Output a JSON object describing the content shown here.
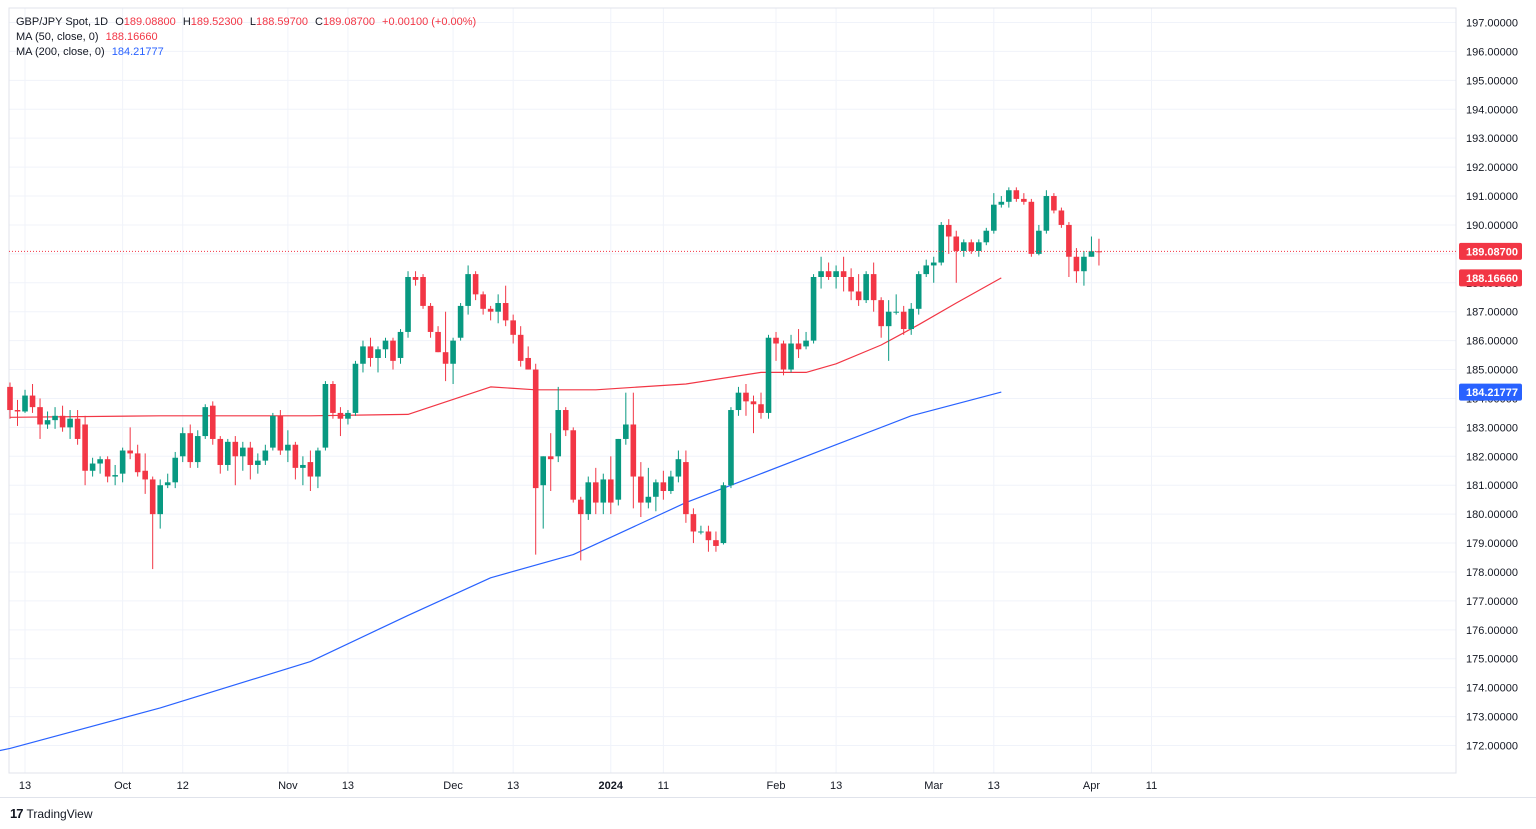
{
  "legend": {
    "symbol": "GBP/JPY Spot, 1D",
    "ohlc": {
      "o_label": "O",
      "o": "189.08800",
      "h_label": "H",
      "h": "189.52300",
      "l_label": "L",
      "l": "188.59700",
      "c_label": "C",
      "c": "189.08700",
      "change": "+0.00100 (+0.00%)"
    },
    "ma50": {
      "label": "MA (50, close, 0)",
      "value": "188.16660"
    },
    "ma200": {
      "label": "MA (200, close, 0)",
      "value": "184.21777"
    }
  },
  "branding": {
    "logo_text": "TradingView",
    "logo_mark": "17"
  },
  "colors": {
    "up": "#089981",
    "down": "#f23645",
    "ma50": "#f23645",
    "ma200": "#2962ff",
    "grid": "#f0f3fa",
    "axis_text": "#131722"
  },
  "chart_data": {
    "type": "candlestick",
    "title": "GBP/JPY Spot, 1D",
    "ylim": [
      171.3,
      197.4
    ],
    "y_ticks": [
      172,
      173,
      174,
      175,
      176,
      177,
      178,
      179,
      180,
      181,
      182,
      183,
      184,
      185,
      186,
      187,
      188,
      189,
      190,
      191,
      192,
      193,
      194,
      195,
      196,
      197
    ],
    "y_tick_labels": [
      "172.00000",
      "173.00000",
      "174.00000",
      "175.00000",
      "176.00000",
      "177.00000",
      "178.00000",
      "179.00000",
      "180.00000",
      "181.00000",
      "182.00000",
      "183.00000",
      "184.00000",
      "185.00000",
      "186.00000",
      "187.00000",
      "188.00000",
      "189.00000",
      "190.00000",
      "191.00000",
      "192.00000",
      "193.00000",
      "194.00000",
      "195.00000",
      "196.00000",
      "197.00000"
    ],
    "x_ticks": [
      {
        "label": "13",
        "date": "2023-09-13",
        "bold": false
      },
      {
        "label": "Oct",
        "date": "2023-10-02",
        "bold": false
      },
      {
        "label": "12",
        "date": "2023-10-12",
        "bold": false
      },
      {
        "label": "Nov",
        "date": "2023-11-01",
        "bold": false
      },
      {
        "label": "13",
        "date": "2023-11-13",
        "bold": false
      },
      {
        "label": "Dec",
        "date": "2023-12-01",
        "bold": false
      },
      {
        "label": "13",
        "date": "2023-12-13",
        "bold": false
      },
      {
        "label": "2024",
        "date": "2024-01-02",
        "bold": true
      },
      {
        "label": "11",
        "date": "2024-01-11",
        "bold": false
      },
      {
        "label": "Feb",
        "date": "2024-02-01",
        "bold": false
      },
      {
        "label": "13",
        "date": "2024-02-13",
        "bold": false
      },
      {
        "label": "Mar",
        "date": "2024-03-01",
        "bold": false
      },
      {
        "label": "13",
        "date": "2024-03-13",
        "bold": false
      },
      {
        "label": "Apr",
        "date": "2024-04-01",
        "bold": false
      },
      {
        "label": "11",
        "date": "2024-04-11",
        "bold": false
      }
    ],
    "last_price": 189.087,
    "last_price_label": "189.08700",
    "ma50_label": "188.16660",
    "ma200_label": "184.21777",
    "ohlc": [
      [
        "2023-09-11",
        184.4,
        184.55,
        183.3,
        183.6
      ],
      [
        "2023-09-12",
        183.6,
        183.95,
        183.05,
        183.55
      ],
      [
        "2023-09-13",
        183.55,
        184.3,
        183.5,
        184.1
      ],
      [
        "2023-09-14",
        184.1,
        184.5,
        183.5,
        183.7
      ],
      [
        "2023-09-15",
        183.7,
        184.0,
        182.6,
        183.1
      ],
      [
        "2023-09-18",
        183.1,
        183.55,
        182.95,
        183.25
      ],
      [
        "2023-09-19",
        183.25,
        183.7,
        182.95,
        183.4
      ],
      [
        "2023-09-20",
        183.4,
        183.75,
        182.85,
        183.0
      ],
      [
        "2023-09-21",
        183.0,
        183.6,
        182.6,
        183.3
      ],
      [
        "2023-09-22",
        183.3,
        183.6,
        182.4,
        182.6
      ],
      [
        "2023-09-25",
        183.1,
        183.4,
        181.0,
        181.5
      ],
      [
        "2023-09-26",
        181.5,
        181.95,
        181.3,
        181.75
      ],
      [
        "2023-09-27",
        181.75,
        182.0,
        181.4,
        181.9
      ],
      [
        "2023-09-28",
        181.9,
        182.0,
        181.1,
        181.3
      ],
      [
        "2023-09-29",
        181.3,
        181.7,
        181.0,
        181.35
      ],
      [
        "2023-10-02",
        181.4,
        182.3,
        181.1,
        182.2
      ],
      [
        "2023-10-03",
        182.2,
        183.0,
        181.9,
        182.1
      ],
      [
        "2023-10-04",
        182.1,
        182.4,
        181.3,
        181.45
      ],
      [
        "2023-10-05",
        181.5,
        182.1,
        180.7,
        181.2
      ],
      [
        "2023-10-06",
        181.2,
        181.3,
        178.1,
        180.0
      ],
      [
        "2023-10-09",
        180.0,
        181.2,
        179.5,
        181.0
      ],
      [
        "2023-10-10",
        181.0,
        181.4,
        180.9,
        181.1
      ],
      [
        "2023-10-11",
        181.1,
        182.15,
        180.9,
        181.95
      ],
      [
        "2023-10-12",
        182.0,
        183.0,
        181.8,
        182.8
      ],
      [
        "2023-10-13",
        182.8,
        183.1,
        181.6,
        181.8
      ],
      [
        "2023-10-16",
        181.8,
        182.9,
        181.6,
        182.7
      ],
      [
        "2023-10-17",
        182.7,
        183.8,
        182.6,
        183.7
      ],
      [
        "2023-10-18",
        183.75,
        183.9,
        182.4,
        182.6
      ],
      [
        "2023-10-19",
        182.6,
        182.7,
        181.4,
        181.7
      ],
      [
        "2023-10-20",
        181.7,
        182.6,
        181.5,
        182.5
      ],
      [
        "2023-10-23",
        182.5,
        182.7,
        181.0,
        182.0
      ],
      [
        "2023-10-24",
        182.0,
        182.5,
        181.5,
        182.3
      ],
      [
        "2023-10-25",
        182.3,
        182.5,
        181.2,
        181.7
      ],
      [
        "2023-10-26",
        181.7,
        182.1,
        181.4,
        181.85
      ],
      [
        "2023-10-27",
        181.85,
        182.4,
        181.7,
        182.2
      ],
      [
        "2023-10-30",
        182.3,
        183.5,
        182.2,
        183.4
      ],
      [
        "2023-10-31",
        183.4,
        183.6,
        182.05,
        182.2
      ],
      [
        "2023-11-01",
        182.2,
        182.9,
        181.8,
        182.4
      ],
      [
        "2023-11-02",
        182.4,
        182.5,
        181.2,
        181.6
      ],
      [
        "2023-11-03",
        181.6,
        182.0,
        181.0,
        181.7
      ],
      [
        "2023-11-06",
        181.8,
        182.2,
        180.8,
        181.3
      ],
      [
        "2023-11-07",
        181.3,
        182.3,
        180.9,
        182.2
      ],
      [
        "2023-11-08",
        182.3,
        184.6,
        182.2,
        184.5
      ],
      [
        "2023-11-09",
        184.5,
        184.6,
        183.3,
        183.5
      ],
      [
        "2023-11-10",
        183.5,
        183.7,
        182.7,
        183.3
      ],
      [
        "2023-11-13",
        183.3,
        183.6,
        183.1,
        183.5
      ],
      [
        "2023-11-14",
        183.5,
        185.3,
        183.4,
        185.2
      ],
      [
        "2023-11-15",
        185.2,
        186.0,
        184.9,
        185.8
      ],
      [
        "2023-11-16",
        185.8,
        186.1,
        185.1,
        185.4
      ],
      [
        "2023-11-17",
        185.4,
        185.8,
        184.9,
        185.7
      ],
      [
        "2023-11-20",
        185.7,
        186.1,
        185.4,
        186.0
      ],
      [
        "2023-11-21",
        186.0,
        186.1,
        185.0,
        185.3
      ],
      [
        "2023-11-22",
        185.4,
        186.4,
        185.2,
        186.3
      ],
      [
        "2023-11-23",
        186.3,
        188.4,
        186.1,
        188.2
      ],
      [
        "2023-11-24",
        188.2,
        188.4,
        187.9,
        188.1
      ],
      [
        "2023-11-27",
        188.2,
        188.3,
        187.1,
        187.2
      ],
      [
        "2023-11-28",
        187.2,
        187.3,
        186.1,
        186.3
      ],
      [
        "2023-11-29",
        186.3,
        186.5,
        185.6,
        185.6
      ],
      [
        "2023-11-30",
        185.6,
        187.0,
        184.6,
        185.2
      ],
      [
        "2023-12-01",
        185.2,
        186.1,
        184.5,
        186.0
      ],
      [
        "2023-12-04",
        186.1,
        187.3,
        186.0,
        187.2
      ],
      [
        "2023-12-05",
        187.2,
        188.6,
        186.9,
        188.3
      ],
      [
        "2023-12-06",
        188.3,
        188.4,
        187.4,
        187.6
      ],
      [
        "2023-12-07",
        187.6,
        187.7,
        186.9,
        187.1
      ],
      [
        "2023-12-08",
        187.1,
        187.2,
        186.7,
        187.0
      ],
      [
        "2023-12-11",
        187.0,
        187.6,
        186.6,
        187.3
      ],
      [
        "2023-12-12",
        187.3,
        187.9,
        186.5,
        186.7
      ],
      [
        "2023-12-13",
        186.7,
        186.9,
        185.9,
        186.2
      ],
      [
        "2023-12-14",
        186.2,
        186.5,
        185.1,
        185.3
      ],
      [
        "2023-12-15",
        185.4,
        185.8,
        185.0,
        185.0
      ],
      [
        "2023-12-18",
        185.0,
        185.2,
        178.6,
        180.9
      ],
      [
        "2023-12-19",
        181.0,
        182.0,
        179.5,
        182.0
      ],
      [
        "2023-12-20",
        182.0,
        182.8,
        180.8,
        181.9
      ],
      [
        "2023-12-21",
        182.0,
        184.4,
        181.8,
        183.6
      ],
      [
        "2023-12-22",
        183.6,
        183.7,
        182.7,
        182.9
      ],
      [
        "2023-12-26",
        182.9,
        183.0,
        180.4,
        180.5
      ],
      [
        "2023-12-27",
        180.5,
        180.6,
        178.4,
        180.0
      ],
      [
        "2023-12-28",
        180.0,
        181.3,
        179.8,
        181.1
      ],
      [
        "2023-12-29",
        181.1,
        181.6,
        180.0,
        180.4
      ],
      [
        "2024-01-01",
        180.4,
        181.4,
        180.0,
        181.2
      ],
      [
        "2024-01-02",
        181.2,
        182.0,
        180.0,
        180.4
      ],
      [
        "2024-01-03",
        180.5,
        182.6,
        180.3,
        182.6
      ],
      [
        "2024-01-04",
        182.6,
        184.2,
        182.4,
        183.1
      ],
      [
        "2024-01-05",
        183.1,
        184.2,
        180.2,
        181.3
      ],
      [
        "2024-01-08",
        181.3,
        181.8,
        179.9,
        180.4
      ],
      [
        "2024-01-09",
        180.4,
        181.6,
        180.2,
        180.6
      ],
      [
        "2024-01-10",
        180.6,
        181.2,
        180.1,
        181.1
      ],
      [
        "2024-01-11",
        181.1,
        181.5,
        180.5,
        180.8
      ],
      [
        "2024-01-12",
        180.8,
        181.5,
        180.7,
        181.3
      ],
      [
        "2024-01-15",
        181.3,
        182.2,
        181.1,
        181.9
      ],
      [
        "2024-01-16",
        181.8,
        182.2,
        179.7,
        180.0
      ],
      [
        "2024-01-17",
        180.0,
        180.2,
        179.0,
        179.4
      ],
      [
        "2024-01-18",
        179.4,
        179.6,
        179.3,
        179.4
      ],
      [
        "2024-01-19",
        179.4,
        179.6,
        178.7,
        179.1
      ],
      [
        "2024-01-22",
        179.1,
        179.4,
        178.7,
        178.9
      ],
      [
        "2024-01-23",
        179.0,
        181.1,
        178.95,
        181.0
      ],
      [
        "2024-01-24",
        181.0,
        183.7,
        180.9,
        183.6
      ],
      [
        "2024-01-25",
        183.6,
        184.4,
        183.4,
        184.2
      ],
      [
        "2024-01-26",
        184.2,
        184.5,
        183.4,
        183.9
      ],
      [
        "2024-01-29",
        183.9,
        184.1,
        182.8,
        183.8
      ],
      [
        "2024-01-30",
        183.8,
        184.2,
        183.3,
        183.5
      ],
      [
        "2024-01-31",
        183.5,
        186.2,
        183.3,
        186.1
      ],
      [
        "2024-02-01",
        186.1,
        186.3,
        185.3,
        185.9
      ],
      [
        "2024-02-02",
        185.9,
        186.0,
        184.8,
        185.0
      ],
      [
        "2024-02-05",
        185.0,
        186.2,
        184.9,
        185.9
      ],
      [
        "2024-02-06",
        185.9,
        186.4,
        185.4,
        185.7
      ],
      [
        "2024-02-07",
        185.8,
        186.3,
        185.7,
        186.0
      ],
      [
        "2024-02-08",
        186.0,
        188.3,
        185.9,
        188.2
      ],
      [
        "2024-02-09",
        188.2,
        188.9,
        187.8,
        188.4
      ],
      [
        "2024-02-12",
        188.4,
        188.7,
        188.1,
        188.2
      ],
      [
        "2024-02-13",
        188.2,
        188.6,
        187.8,
        188.4
      ],
      [
        "2024-02-14",
        188.4,
        188.9,
        187.7,
        188.2
      ],
      [
        "2024-02-15",
        188.2,
        188.5,
        187.4,
        187.7
      ],
      [
        "2024-02-16",
        187.7,
        188.3,
        187.2,
        187.4
      ],
      [
        "2024-02-19",
        187.4,
        188.4,
        187.3,
        188.3
      ],
      [
        "2024-02-20",
        188.3,
        188.7,
        187.0,
        187.4
      ],
      [
        "2024-02-21",
        187.4,
        187.5,
        186.1,
        186.5
      ],
      [
        "2024-02-22",
        186.5,
        187.4,
        185.3,
        187.0
      ],
      [
        "2024-02-23",
        187.0,
        187.6,
        186.9,
        187.0
      ],
      [
        "2024-02-26",
        187.0,
        187.2,
        186.2,
        186.4
      ],
      [
        "2024-02-27",
        186.4,
        187.3,
        186.2,
        187.1
      ],
      [
        "2024-02-28",
        187.1,
        188.4,
        186.9,
        188.3
      ],
      [
        "2024-02-29",
        188.3,
        188.8,
        188.2,
        188.6
      ],
      [
        "2024-03-01",
        188.6,
        188.9,
        188.0,
        188.7
      ],
      [
        "2024-03-04",
        188.7,
        190.1,
        188.6,
        190.0
      ],
      [
        "2024-03-05",
        190.0,
        190.2,
        189.0,
        189.6
      ],
      [
        "2024-03-06",
        189.6,
        189.8,
        188.0,
        189.1
      ],
      [
        "2024-03-07",
        189.1,
        189.5,
        188.9,
        189.4
      ],
      [
        "2024-03-08",
        189.4,
        189.5,
        189.0,
        189.1
      ],
      [
        "2024-03-11",
        189.1,
        189.5,
        188.9,
        189.4
      ],
      [
        "2024-03-12",
        189.4,
        189.9,
        189.3,
        189.8
      ],
      [
        "2024-03-13",
        189.8,
        191.1,
        189.7,
        190.7
      ],
      [
        "2024-03-14",
        190.7,
        191.0,
        190.6,
        190.8
      ],
      [
        "2024-03-15",
        190.8,
        191.3,
        190.6,
        191.2
      ],
      [
        "2024-03-18",
        191.2,
        191.3,
        190.8,
        190.9
      ],
      [
        "2024-03-19",
        190.9,
        191.1,
        190.7,
        190.8
      ],
      [
        "2024-03-20",
        190.8,
        190.9,
        188.9,
        189.0
      ],
      [
        "2024-03-21",
        189.0,
        190.0,
        188.95,
        189.8
      ],
      [
        "2024-03-22",
        189.8,
        191.2,
        189.7,
        191.0
      ],
      [
        "2024-03-25",
        191.0,
        191.1,
        190.4,
        190.5
      ],
      [
        "2024-03-26",
        190.5,
        190.6,
        189.9,
        190.0
      ],
      [
        "2024-03-27",
        190.0,
        190.1,
        188.2,
        188.9
      ],
      [
        "2024-03-28",
        188.9,
        189.2,
        188.0,
        188.4
      ],
      [
        "2024-03-29",
        188.4,
        189.1,
        187.9,
        188.9
      ],
      [
        "2024-04-01",
        188.9,
        189.6,
        188.9,
        189.09
      ],
      [
        "2024-04-02",
        189.088,
        189.523,
        188.597,
        189.087
      ]
    ],
    "ma50": [
      [
        0,
        183.35
      ],
      [
        20,
        183.4
      ],
      [
        40,
        183.4
      ],
      [
        53,
        183.45
      ],
      [
        64,
        184.4
      ],
      [
        70,
        184.3
      ],
      [
        78,
        184.3
      ],
      [
        84,
        184.4
      ],
      [
        90,
        184.5
      ],
      [
        100,
        184.9
      ],
      [
        106,
        184.9
      ],
      [
        110,
        185.2
      ],
      [
        116,
        185.85
      ],
      [
        121,
        186.55
      ],
      [
        126,
        187.3
      ],
      [
        132,
        188.17
      ]
    ],
    "ma200": [
      [
        -10,
        171.35
      ],
      [
        0,
        171.9
      ],
      [
        20,
        173.3
      ],
      [
        40,
        174.9
      ],
      [
        53,
        176.5
      ],
      [
        64,
        177.8
      ],
      [
        75,
        178.6
      ],
      [
        80,
        179.2
      ],
      [
        90,
        180.4
      ],
      [
        100,
        181.4
      ],
      [
        110,
        182.4
      ],
      [
        120,
        183.4
      ],
      [
        132,
        184.22
      ]
    ]
  }
}
